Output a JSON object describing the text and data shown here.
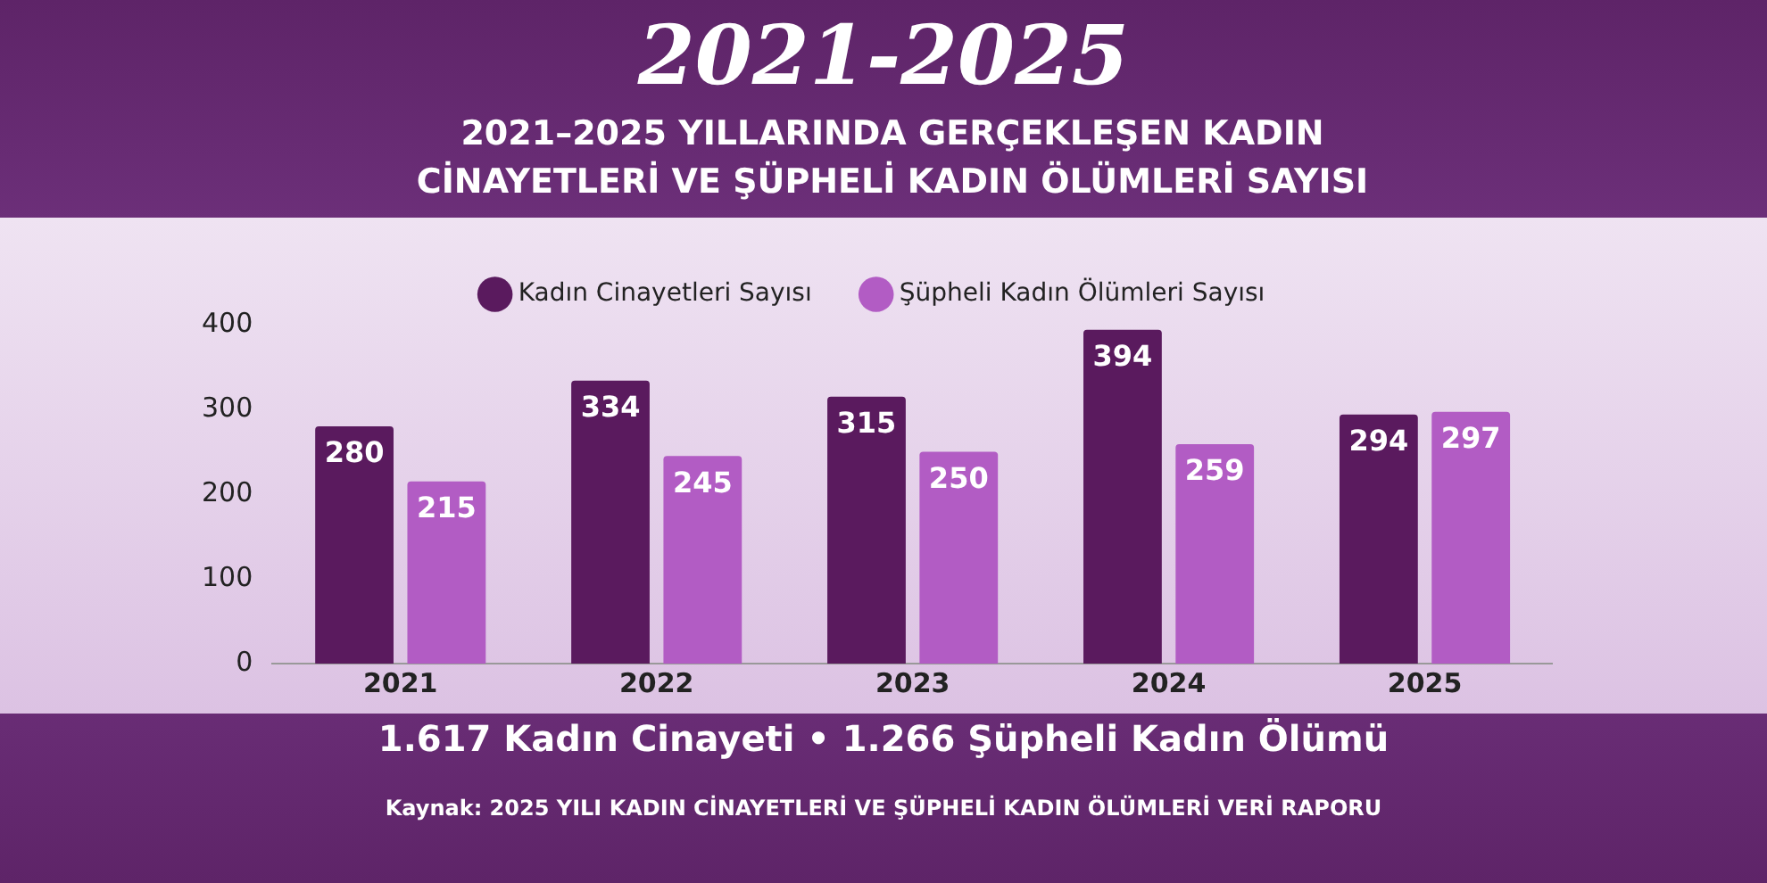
{
  "chart_data": {
    "type": "bar",
    "title": "2021-2025",
    "subtitle": "2021–2025 YILLARINDA GERÇEKLEŞEN KADIN CİNAYETLERİ VE ŞÜPHELİ KADIN ÖLÜMLERİ SAYISI",
    "categories": [
      "2021",
      "2022",
      "2023",
      "2024",
      "2025"
    ],
    "series": [
      {
        "name": "Kadın Cinayetleri Sayısı",
        "color": "#5a1a5e",
        "values": [
          280,
          334,
          315,
          394,
          294
        ]
      },
      {
        "name": "Şüpheli Kadın Ölümleri Sayısı",
        "color": "#b25cc4",
        "values": [
          215,
          245,
          250,
          259,
          297
        ]
      }
    ],
    "ylim": [
      0,
      400
    ],
    "yticks": [
      0,
      100,
      200,
      300,
      400
    ],
    "grid": false,
    "legend": "top",
    "data_labels": true,
    "annotations": [
      "1.617 Kadın Cinayeti • 1.266 Şüpheli Kadın Ölümü",
      "Kaynak: 2025 YILI KADIN CİNAYETLERİ VE ŞÜPHELİ KADIN ÖLÜMLERİ VERİ RAPORU"
    ]
  }
}
